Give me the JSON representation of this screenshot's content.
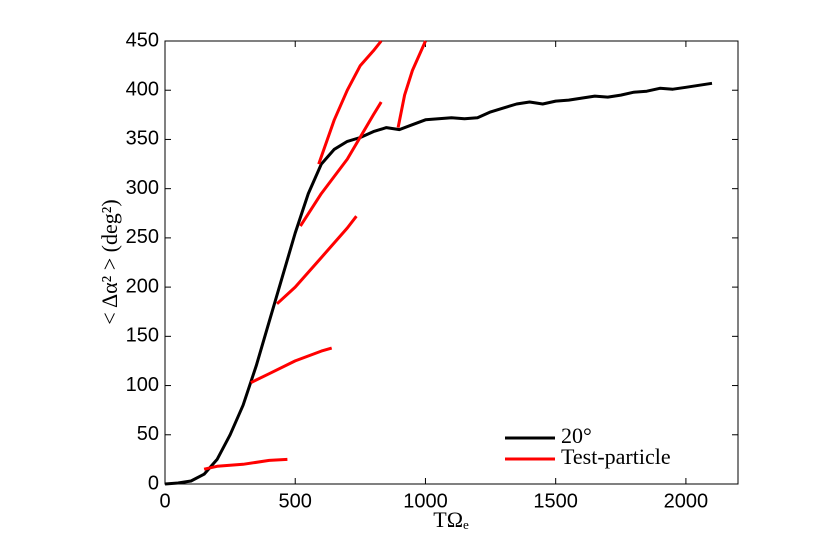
{
  "chart_data": {
    "type": "line",
    "xlabel": "TΩₑ",
    "ylabel": "< Δα² > (deg²)",
    "xlim": [
      0,
      2200
    ],
    "xticks": [
      0,
      500,
      1000,
      1500,
      2000
    ],
    "ylim": [
      0,
      450
    ],
    "yticks": [
      0,
      50,
      100,
      150,
      200,
      250,
      300,
      350,
      400,
      450
    ],
    "legend": "lower right",
    "series": [
      {
        "name": "20°",
        "color": "#000000",
        "x": [
          0,
          50,
          100,
          150,
          200,
          250,
          300,
          350,
          400,
          450,
          500,
          550,
          600,
          650,
          700,
          750,
          800,
          850,
          900,
          950,
          1000,
          1050,
          1100,
          1150,
          1200,
          1250,
          1300,
          1350,
          1400,
          1450,
          1500,
          1550,
          1600,
          1650,
          1700,
          1750,
          1800,
          1850,
          1900,
          1950,
          2000,
          2050,
          2100
        ],
        "values": [
          0,
          1,
          3,
          10,
          25,
          50,
          80,
          120,
          165,
          210,
          255,
          295,
          325,
          340,
          348,
          352,
          358,
          362,
          360,
          365,
          370,
          371,
          372,
          371,
          372,
          378,
          382,
          386,
          388,
          386,
          389,
          390,
          392,
          394,
          393,
          395,
          398,
          399,
          402,
          401,
          403,
          405,
          407
        ]
      },
      {
        "name": "Test-particle",
        "color": "#ff0000",
        "x": [
          150,
          200,
          300,
          400,
          470,
          null,
          330,
          400,
          500,
          600,
          640,
          null,
          430,
          500,
          600,
          700,
          735,
          null,
          520,
          600,
          700,
          800,
          830,
          null,
          590,
          650,
          700,
          750,
          800,
          830,
          null,
          895,
          920,
          950,
          1000
        ],
        "values": [
          15,
          18,
          20,
          24,
          25,
          null,
          103,
          112,
          125,
          135,
          138,
          null,
          183,
          200,
          230,
          260,
          272,
          null,
          262,
          295,
          330,
          375,
          388,
          null,
          325,
          370,
          400,
          425,
          440,
          450,
          null,
          362,
          395,
          420,
          450
        ]
      }
    ]
  }
}
